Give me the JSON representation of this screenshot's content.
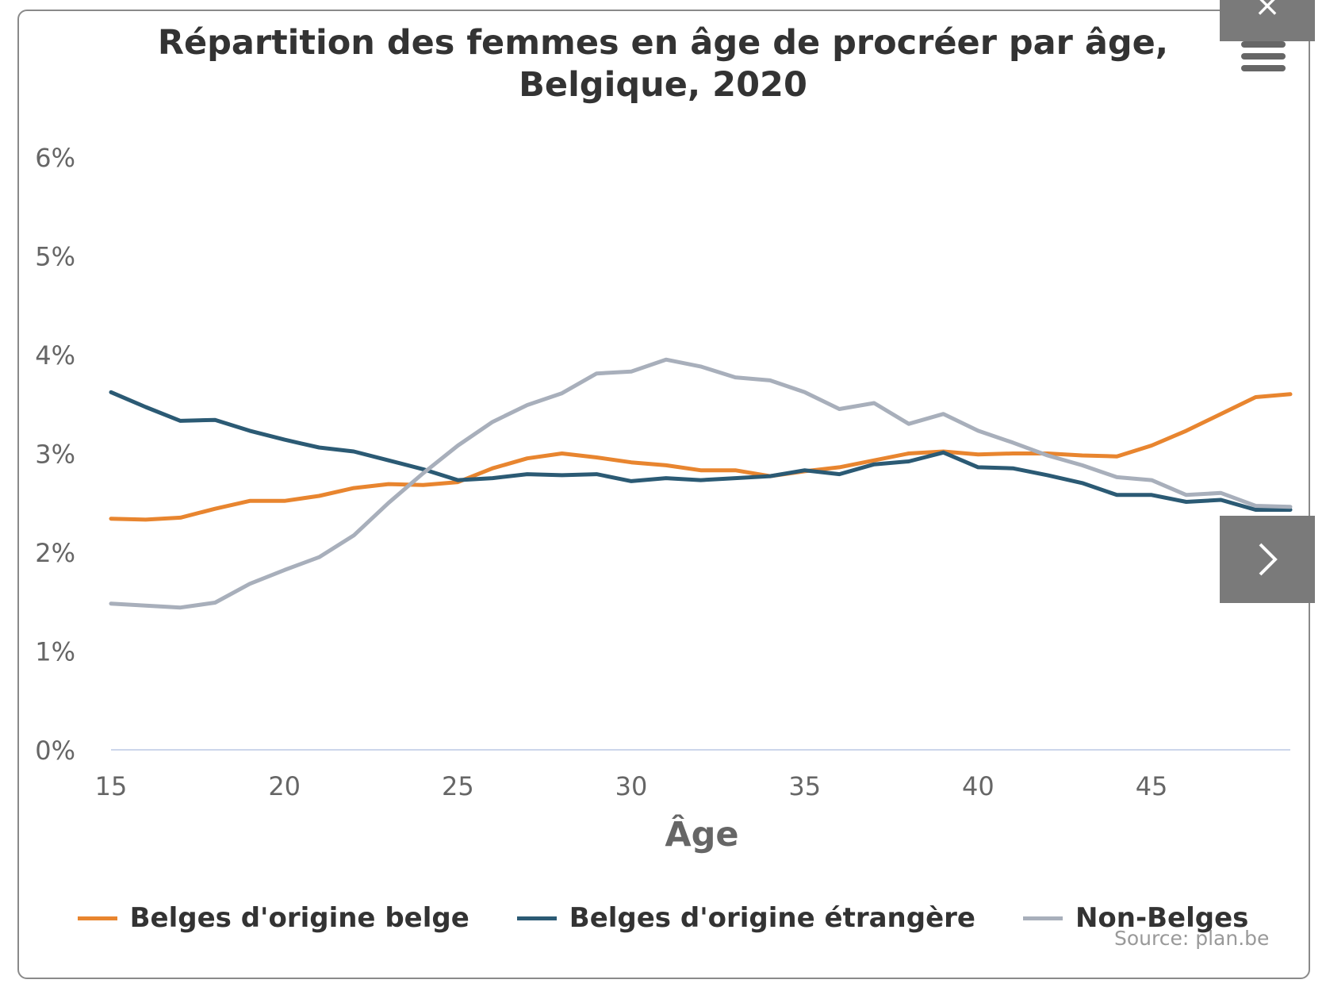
{
  "chart_data": {
    "type": "line",
    "title_line1": "Répartition des femmes en âge de procréer par âge,",
    "title_line2": "Belgique, 2020",
    "xlabel": "Âge",
    "ylabel": "",
    "x": [
      15,
      16,
      17,
      18,
      19,
      20,
      21,
      22,
      23,
      24,
      25,
      26,
      27,
      28,
      29,
      30,
      31,
      32,
      33,
      34,
      35,
      36,
      37,
      38,
      39,
      40,
      41,
      42,
      43,
      44,
      45,
      46,
      47,
      48,
      49
    ],
    "xlim": [
      15,
      49
    ],
    "ylim": [
      0,
      6
    ],
    "x_ticks": [
      "15",
      "20",
      "25",
      "30",
      "35",
      "40",
      "45"
    ],
    "x_tick_values": [
      15,
      20,
      25,
      30,
      35,
      40,
      45
    ],
    "y_ticks": [
      "0%",
      "1%",
      "2%",
      "3%",
      "4%",
      "5%",
      "6%"
    ],
    "y_tick_values": [
      0,
      1,
      2,
      3,
      4,
      5,
      6
    ],
    "grid": false,
    "legend_position": "bottom",
    "series": [
      {
        "name": "Belges d'origine belge",
        "color": "#e8852f",
        "values": [
          2.34,
          2.33,
          2.35,
          2.44,
          2.52,
          2.52,
          2.57,
          2.65,
          2.69,
          2.68,
          2.71,
          2.85,
          2.95,
          3.0,
          2.96,
          2.91,
          2.88,
          2.83,
          2.83,
          2.77,
          2.82,
          2.86,
          2.93,
          3.0,
          3.02,
          2.99,
          3.0,
          3.0,
          2.98,
          2.97,
          3.08,
          3.23,
          3.4,
          3.57,
          3.6
        ]
      },
      {
        "name": "Belges d'origine étrangère",
        "color": "#2b5a74",
        "values": [
          3.62,
          3.47,
          3.33,
          3.34,
          3.23,
          3.14,
          3.06,
          3.02,
          2.93,
          2.84,
          2.73,
          2.75,
          2.79,
          2.78,
          2.79,
          2.72,
          2.75,
          2.73,
          2.75,
          2.77,
          2.83,
          2.79,
          2.89,
          2.92,
          3.01,
          2.86,
          2.85,
          2.78,
          2.7,
          2.58,
          2.58,
          2.51,
          2.53,
          2.43,
          2.43
        ]
      },
      {
        "name": "Non-Belges",
        "color": "#a8afbb",
        "values": [
          1.48,
          1.46,
          1.44,
          1.49,
          1.68,
          1.82,
          1.95,
          2.17,
          2.5,
          2.8,
          3.08,
          3.32,
          3.49,
          3.61,
          3.81,
          3.83,
          3.95,
          3.88,
          3.77,
          3.74,
          3.62,
          3.45,
          3.51,
          3.3,
          3.4,
          3.23,
          3.11,
          2.98,
          2.88,
          2.76,
          2.73,
          2.58,
          2.6,
          2.47,
          2.46
        ]
      }
    ],
    "source": "Source: plan.be"
  },
  "ui": {
    "menu_icon": "hamburger-icon",
    "next_icon": "chevron-right-icon",
    "close_icon": "close-icon",
    "close_glyph": "×"
  }
}
